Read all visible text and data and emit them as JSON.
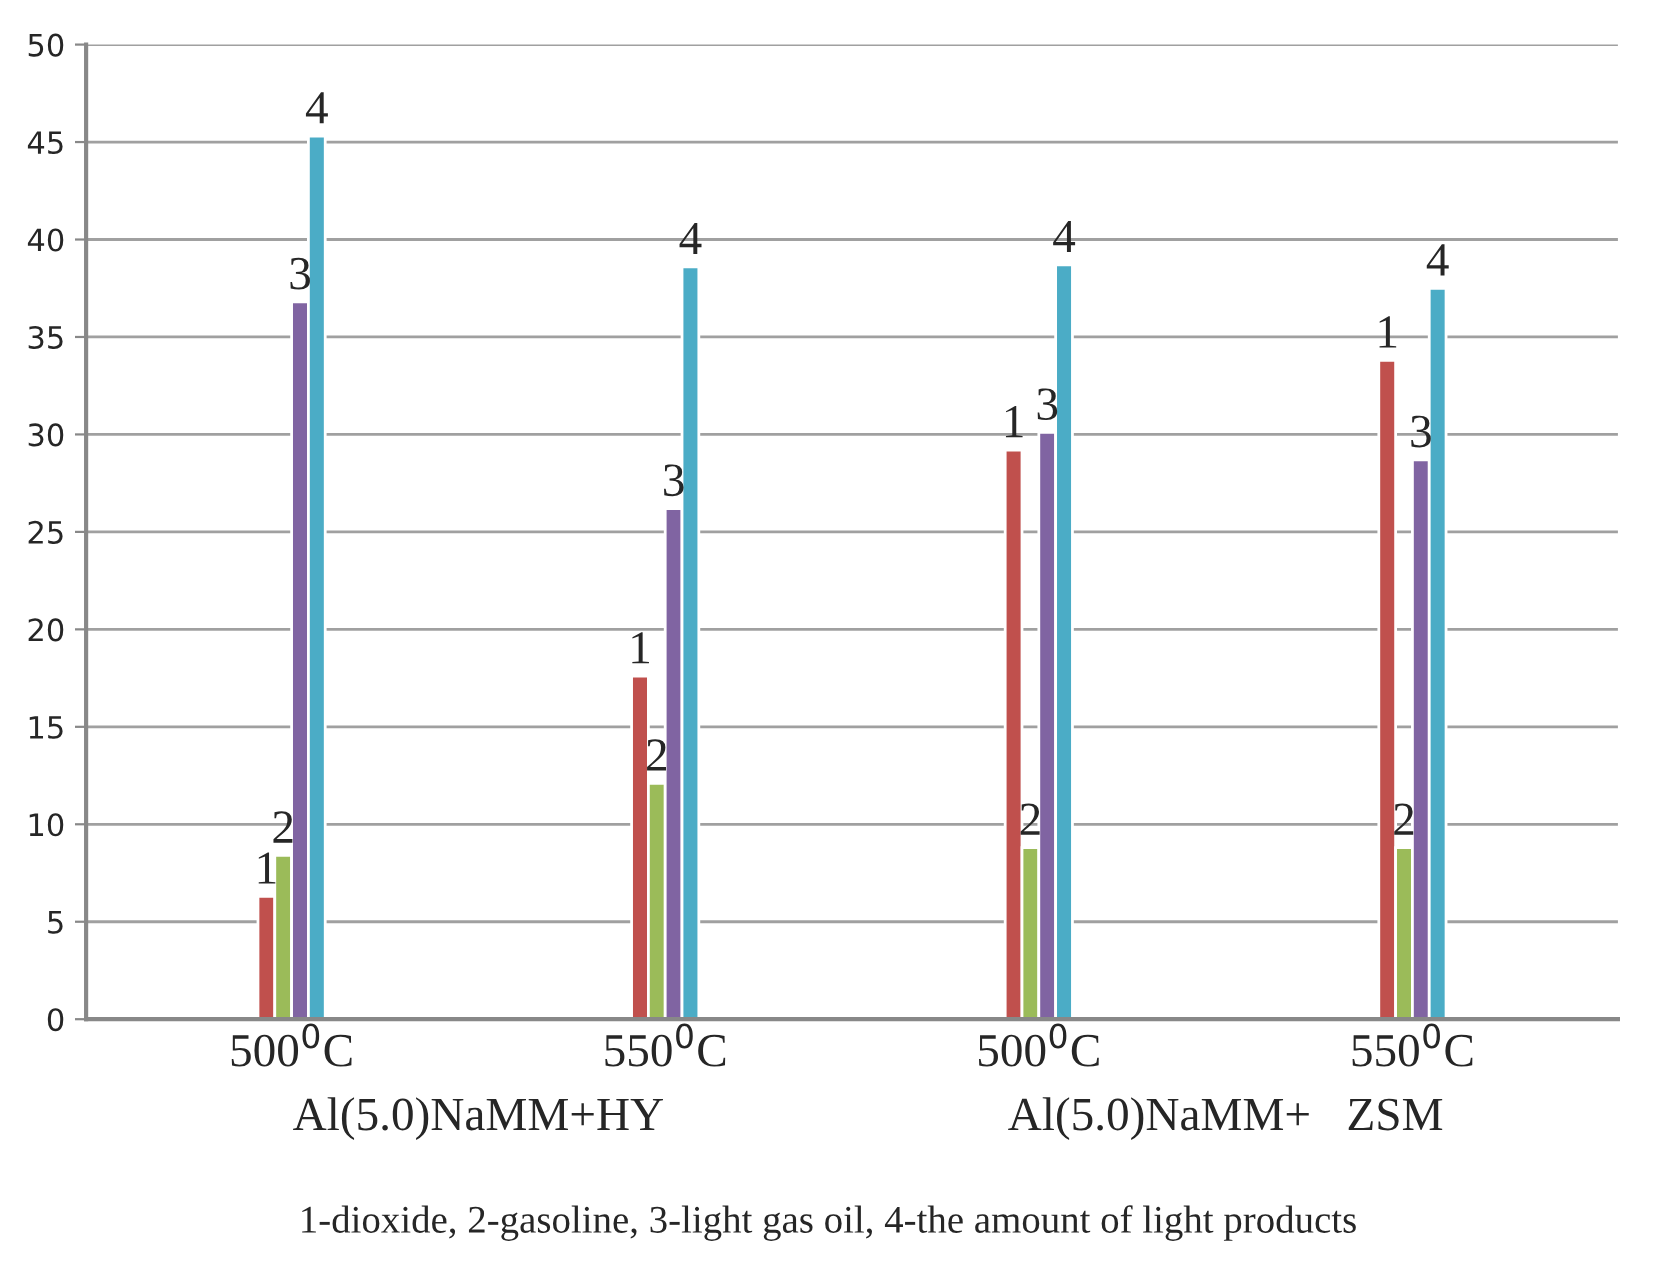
{
  "chart_data": {
    "type": "bar",
    "categories": [
      "500$^{0}$C",
      "550$^{0}$C",
      "500$^{0}$C",
      "550$^{0}$C"
    ],
    "series": [
      {
        "name": "1",
        "color": "#c0504d",
        "values": [
          6.3,
          17.6,
          29.2,
          33.8
        ]
      },
      {
        "name": "2",
        "color": "#9bbb59",
        "values": [
          8.4,
          12.1,
          8.8,
          8.8
        ]
      },
      {
        "name": "3",
        "color": "#8064a2",
        "values": [
          36.8,
          26.2,
          30.1,
          28.7
        ]
      },
      {
        "name": "4",
        "color": "#4bacc6",
        "values": [
          45.3,
          38.6,
          38.7,
          37.5
        ]
      }
    ],
    "ylim": [
      0,
      50
    ],
    "yticks": [
      0,
      5,
      10,
      15,
      20,
      25,
      30,
      35,
      40,
      45,
      50
    ],
    "grid": "y",
    "legend": false,
    "annotations": [
      "Al(5.0)NaMM+HY",
      "Al(5.0)NaMM+   ZSM",
      "1-dioxide, 2-gasoline, 3-light gas oil, 4-the amount of light products"
    ]
  }
}
